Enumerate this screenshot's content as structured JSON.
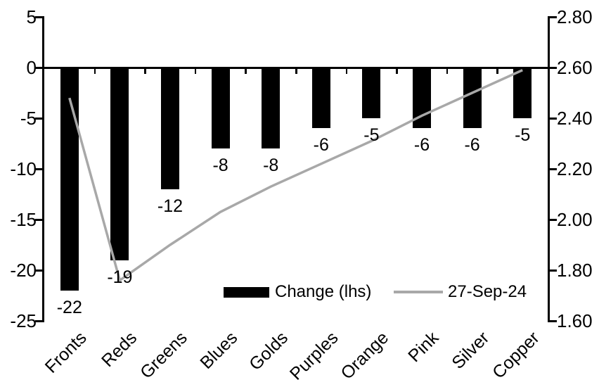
{
  "chart_data": {
    "type": "bar+line",
    "title": "",
    "categories": [
      "Fronts",
      "Reds",
      "Greens",
      "Blues",
      "Golds",
      "Purples",
      "Orange",
      "Pink",
      "Silver",
      "Copper"
    ],
    "series": [
      {
        "name": "Change (lhs)",
        "type": "bar",
        "axis": "left",
        "color": "#000000",
        "values": [
          -22,
          -19,
          -12,
          -8,
          -8,
          -6,
          -5,
          -6,
          -6,
          -5
        ],
        "data_labels": [
          "-22",
          "-19",
          "-12",
          "-8",
          "-8",
          "-6",
          "-5",
          "-6",
          "-6",
          "-5"
        ]
      },
      {
        "name": "27-Sep-24",
        "type": "line",
        "axis": "right",
        "color": "#a8a8a8",
        "values": [
          2.48,
          1.76,
          1.9,
          2.03,
          2.13,
          2.22,
          2.31,
          2.41,
          2.5,
          2.59
        ]
      }
    ],
    "left_axis": {
      "min": -25,
      "max": 5,
      "tick_labels": [
        "5",
        "0",
        "-5",
        "-10",
        "-15",
        "-20",
        "-25"
      ]
    },
    "right_axis": {
      "min": 1.6,
      "max": 2.8,
      "tick_labels": [
        "2.80",
        "2.60",
        "2.40",
        "2.20",
        "2.00",
        "1.80",
        "1.60"
      ]
    },
    "legend": {
      "position": "inside-bottom",
      "entries": [
        "Change (lhs)",
        "27-Sep-24"
      ]
    },
    "grid": false,
    "background_color": "#ffffff",
    "axis_color": "#000000"
  }
}
